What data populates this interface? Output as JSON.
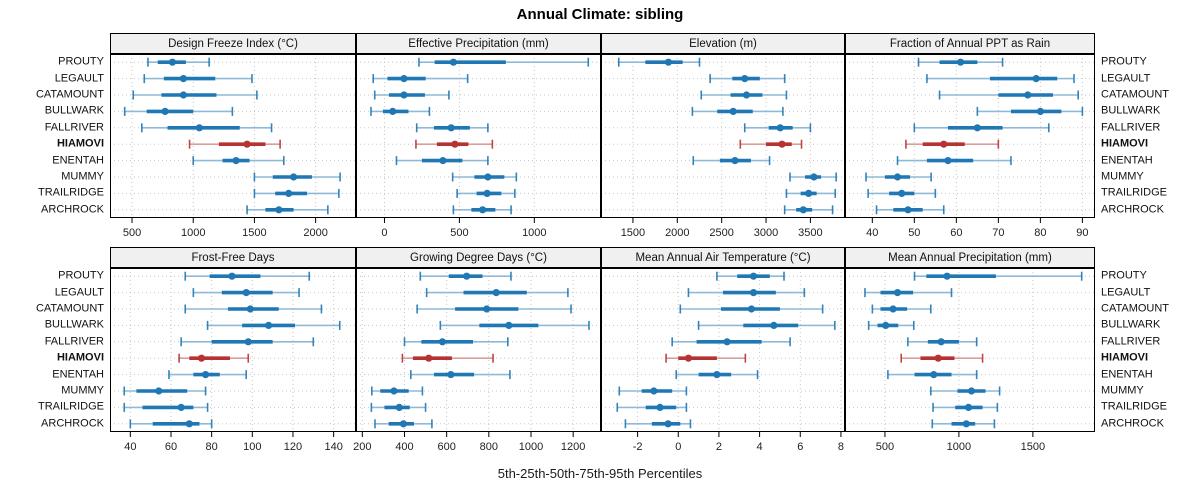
{
  "title": "Annual Climate: sibling",
  "caption": "5th-25th-50th-75th-95th Percentiles",
  "colors": {
    "normal": "#1f77b4",
    "normal_light": "#7fafd3",
    "highlight": "#b73333",
    "highlight_light": "#d48f8f",
    "grid": "#c6c6c6",
    "strip_bg": "#f0f0f0",
    "border": "#000000",
    "tick_text": "#222222"
  },
  "sites": [
    "PROUTY",
    "LEGAULT",
    "CATAMOUNT",
    "BULLWARK",
    "FALLRIVER",
    "HIAMOVI",
    "ENENTAH",
    "MUMMY",
    "TRAILRIDGE",
    "ARCHROCK"
  ],
  "highlight_site": "HIAMOVI",
  "chart_data": {
    "type": "dotplot",
    "note": "5th-25th-50th-75th-95th percentile intervals per site; series arrays align with sites order",
    "percentiles": [
      5,
      25,
      50,
      75,
      95
    ],
    "layout": {
      "rows": 2,
      "cols": 4,
      "legend": "none",
      "grid": "dotted"
    },
    "panels": [
      {
        "title": "Design Freeze Index (°C)",
        "ticks": [
          500,
          1000,
          1500,
          2000
        ],
        "domain": [
          320,
          2330
        ],
        "series": [
          [
            630,
            710,
            830,
            940,
            1130
          ],
          [
            600,
            760,
            920,
            1180,
            1480
          ],
          [
            510,
            740,
            920,
            1190,
            1520
          ],
          [
            440,
            620,
            770,
            1000,
            1320
          ],
          [
            580,
            790,
            1050,
            1380,
            1640
          ],
          [
            970,
            1210,
            1440,
            1590,
            1710
          ],
          [
            1000,
            1240,
            1350,
            1460,
            1740
          ],
          [
            1500,
            1650,
            1820,
            1970,
            2200
          ],
          [
            1500,
            1670,
            1780,
            1930,
            2190
          ],
          [
            1440,
            1590,
            1700,
            1820,
            2100
          ]
        ]
      },
      {
        "title": "Effective Precipitation (mm)",
        "ticks": [
          0,
          500,
          1000
        ],
        "domain": [
          -190,
          1445
        ],
        "series": [
          [
            230,
            335,
            460,
            810,
            1360
          ],
          [
            -75,
            20,
            130,
            275,
            555
          ],
          [
            -65,
            30,
            130,
            270,
            430
          ],
          [
            -90,
            -10,
            55,
            160,
            300
          ],
          [
            215,
            330,
            445,
            570,
            690
          ],
          [
            210,
            350,
            470,
            560,
            720
          ],
          [
            80,
            250,
            390,
            520,
            690
          ],
          [
            455,
            600,
            690,
            800,
            880
          ],
          [
            485,
            615,
            685,
            780,
            870
          ],
          [
            460,
            580,
            655,
            740,
            845
          ]
        ]
      },
      {
        "title": "Elevation (m)",
        "ticks": [
          1500,
          2000,
          2500,
          3000,
          3500
        ],
        "domain": [
          1140,
          3890
        ],
        "series": [
          [
            1340,
            1640,
            1900,
            2060,
            2250
          ],
          [
            2370,
            2620,
            2760,
            2930,
            3210
          ],
          [
            2270,
            2600,
            2780,
            2960,
            3230
          ],
          [
            2170,
            2450,
            2630,
            2850,
            3190
          ],
          [
            2760,
            3030,
            3160,
            3300,
            3500
          ],
          [
            2710,
            3000,
            3180,
            3290,
            3400
          ],
          [
            2180,
            2480,
            2650,
            2830,
            3040
          ],
          [
            3270,
            3440,
            3540,
            3620,
            3790
          ],
          [
            3230,
            3390,
            3480,
            3570,
            3780
          ],
          [
            3210,
            3340,
            3420,
            3520,
            3750
          ]
        ]
      },
      {
        "title": "Fraction of Annual PPT as Rain",
        "ticks": [
          40,
          50,
          60,
          70,
          80,
          90
        ],
        "domain": [
          33.5,
          93
        ],
        "series": [
          [
            51,
            56,
            61,
            65,
            71
          ],
          [
            53,
            68,
            79,
            84,
            88
          ],
          [
            56,
            70,
            77,
            83,
            89
          ],
          [
            65,
            73,
            80,
            85,
            90
          ],
          [
            50,
            58,
            65,
            71,
            82
          ],
          [
            48,
            52,
            57,
            62,
            70
          ],
          [
            46,
            53,
            58,
            64,
            73
          ],
          [
            38.5,
            43,
            46,
            49,
            54
          ],
          [
            39,
            44,
            47,
            50,
            55
          ],
          [
            41,
            45,
            48.5,
            52,
            57
          ]
        ]
      },
      {
        "title": "Frost-Free Days",
        "ticks": [
          40,
          60,
          80,
          100,
          120,
          140
        ],
        "domain": [
          30,
          151
        ],
        "series": [
          [
            67,
            79,
            90,
            104,
            128
          ],
          [
            71,
            85,
            97,
            110,
            123
          ],
          [
            67,
            88,
            99,
            113,
            134
          ],
          [
            78,
            95,
            108,
            121,
            143
          ],
          [
            65,
            80,
            98,
            110,
            130
          ],
          [
            64,
            69,
            75,
            89,
            98
          ],
          [
            59,
            71,
            77,
            84,
            97
          ],
          [
            37,
            43,
            54,
            68,
            77
          ],
          [
            37,
            46,
            65,
            71,
            78
          ],
          [
            40,
            51,
            69,
            74,
            80
          ]
        ]
      },
      {
        "title": "Growing Degree Days (°C)",
        "ticks": [
          200,
          400,
          600,
          800,
          1000,
          1200
        ],
        "domain": [
          170,
          1332
        ],
        "series": [
          [
            475,
            610,
            695,
            770,
            905
          ],
          [
            505,
            680,
            835,
            980,
            1175
          ],
          [
            460,
            640,
            790,
            940,
            1190
          ],
          [
            570,
            755,
            895,
            1035,
            1275
          ],
          [
            400,
            480,
            580,
            725,
            890
          ],
          [
            390,
            440,
            515,
            625,
            820
          ],
          [
            430,
            540,
            620,
            730,
            900
          ],
          [
            245,
            285,
            350,
            420,
            485
          ],
          [
            243,
            305,
            375,
            425,
            500
          ],
          [
            260,
            325,
            395,
            445,
            530
          ]
        ]
      },
      {
        "title": "Mean Annual Air Temperature (°C)",
        "ticks": [
          -2,
          0,
          2,
          4,
          6,
          8
        ],
        "domain": [
          -3.8,
          8.2
        ],
        "series": [
          [
            1.9,
            2.9,
            3.7,
            4.5,
            5.2
          ],
          [
            0.5,
            2.2,
            3.7,
            4.8,
            6.2
          ],
          [
            0.1,
            2.1,
            3.6,
            5.0,
            7.1
          ],
          [
            1.0,
            3.2,
            4.7,
            5.9,
            7.7
          ],
          [
            -0.3,
            0.9,
            2.4,
            4.1,
            5.5
          ],
          [
            -0.6,
            0.0,
            0.5,
            1.9,
            3.3
          ],
          [
            -0.1,
            1.0,
            1.9,
            2.6,
            3.9
          ],
          [
            -2.9,
            -1.8,
            -1.2,
            -0.3,
            0.4
          ],
          [
            -3.0,
            -1.6,
            -0.9,
            -0.1,
            0.4
          ],
          [
            -2.6,
            -1.3,
            -0.5,
            0.1,
            0.6
          ]
        ]
      },
      {
        "title": "Mean Annual Precipitation (mm)",
        "ticks": [
          500,
          1000,
          1500
        ],
        "domain": [
          230,
          1920
        ],
        "series": [
          [
            700,
            780,
            920,
            1250,
            1830
          ],
          [
            365,
            470,
            585,
            690,
            950
          ],
          [
            415,
            470,
            555,
            650,
            810
          ],
          [
            390,
            450,
            505,
            590,
            695
          ],
          [
            655,
            790,
            880,
            1000,
            1120
          ],
          [
            610,
            740,
            860,
            970,
            1160
          ],
          [
            520,
            700,
            830,
            950,
            1120
          ],
          [
            810,
            990,
            1085,
            1180,
            1275
          ],
          [
            825,
            975,
            1065,
            1160,
            1260
          ],
          [
            820,
            950,
            1050,
            1110,
            1240
          ]
        ]
      }
    ]
  }
}
